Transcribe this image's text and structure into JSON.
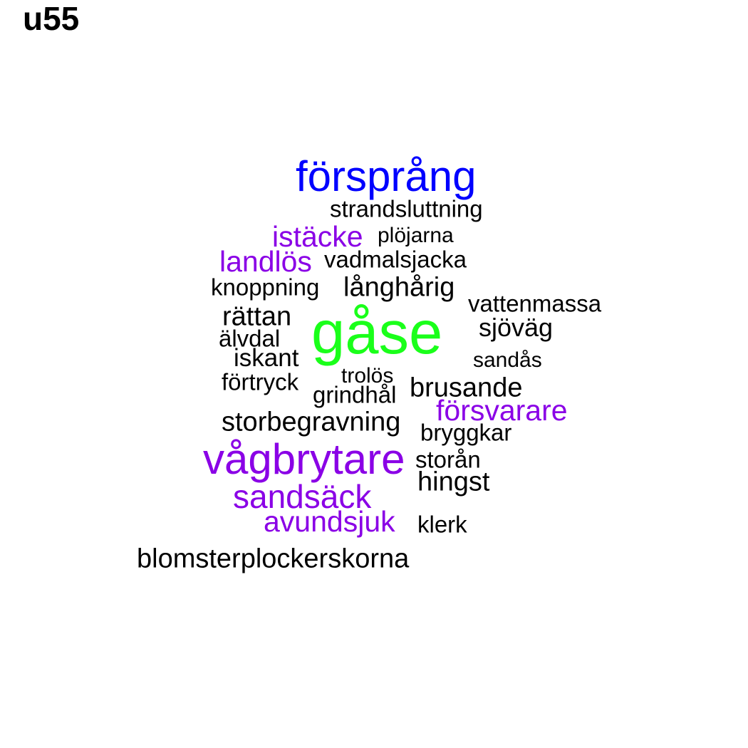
{
  "title": "u55",
  "colors": {
    "default": "#000000",
    "blue": "#0000ff",
    "green": "#1aff1a",
    "purple": "#8a00e6"
  },
  "words": [
    {
      "text": "försprång",
      "color": "blue"
    },
    {
      "text": "strandsluttning",
      "color": "default"
    },
    {
      "text": "istäcke",
      "color": "purple"
    },
    {
      "text": "plöjarna",
      "color": "default"
    },
    {
      "text": "landlös",
      "color": "purple"
    },
    {
      "text": "vadmalsjacka",
      "color": "default"
    },
    {
      "text": "knoppning",
      "color": "default"
    },
    {
      "text": "långhårig",
      "color": "default"
    },
    {
      "text": "vattenmassa",
      "color": "default"
    },
    {
      "text": "rättan",
      "color": "default"
    },
    {
      "text": "gåse",
      "color": "green"
    },
    {
      "text": "sjöväg",
      "color": "default"
    },
    {
      "text": "älvdal",
      "color": "default"
    },
    {
      "text": "iskant",
      "color": "default"
    },
    {
      "text": "sandås",
      "color": "default"
    },
    {
      "text": "trolös",
      "color": "default"
    },
    {
      "text": "förtryck",
      "color": "default"
    },
    {
      "text": "grindhål",
      "color": "default"
    },
    {
      "text": "brusande",
      "color": "default"
    },
    {
      "text": "försvarare",
      "color": "purple"
    },
    {
      "text": "storbegravning",
      "color": "default"
    },
    {
      "text": "bryggkar",
      "color": "default"
    },
    {
      "text": "vågbrytare",
      "color": "purple"
    },
    {
      "text": "storån",
      "color": "default"
    },
    {
      "text": "hingst",
      "color": "default"
    },
    {
      "text": "sandsäck",
      "color": "purple"
    },
    {
      "text": "avundsjuk",
      "color": "purple"
    },
    {
      "text": "klerk",
      "color": "default"
    },
    {
      "text": "blomsterplockerskorna",
      "color": "default"
    }
  ]
}
